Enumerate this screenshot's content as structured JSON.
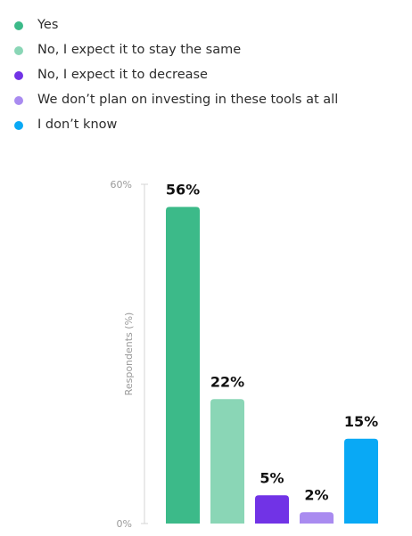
{
  "chart_data": {
    "type": "bar",
    "categories": [
      "Yes",
      "No, I expect it to stay the same",
      "No, I expect it to decrease",
      "We don’t plan on investing in these tools at all",
      "I don’t know"
    ],
    "values": [
      56,
      22,
      5,
      2,
      15
    ],
    "value_labels": [
      "56%",
      "22%",
      "5%",
      "2%",
      "15%"
    ],
    "colors": [
      "#3cba89",
      "#8ad6b6",
      "#7133e6",
      "#a98bf0",
      "#09a9f5"
    ],
    "title": "",
    "xlabel": "",
    "ylabel": "Respondents (%)",
    "ylim": [
      0,
      60
    ],
    "y_ticks": [
      {
        "value": 0,
        "label": "0%"
      },
      {
        "value": 60,
        "label": "60%"
      }
    ],
    "grid": false,
    "legend_position": "top-left"
  }
}
